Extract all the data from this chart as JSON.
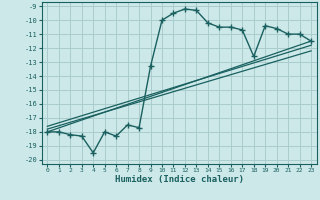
{
  "xlabel": "Humidex (Indice chaleur)",
  "ylabel": "",
  "bg_color": "#cce8e8",
  "grid_color": "#aacccc",
  "line_color": "#1a6060",
  "xlim": [
    -0.5,
    23.5
  ],
  "ylim": [
    -20.3,
    -8.7
  ],
  "yticks": [
    -9,
    -10,
    -11,
    -12,
    -13,
    -14,
    -15,
    -16,
    -17,
    -18,
    -19,
    -20
  ],
  "xticks": [
    0,
    1,
    2,
    3,
    4,
    5,
    6,
    7,
    8,
    9,
    10,
    11,
    12,
    13,
    14,
    15,
    16,
    17,
    18,
    19,
    20,
    21,
    22,
    23
  ],
  "main_x": [
    0,
    1,
    2,
    3,
    4,
    5,
    6,
    7,
    8,
    9,
    10,
    11,
    12,
    13,
    14,
    15,
    16,
    17,
    18,
    19,
    20,
    21,
    22,
    23
  ],
  "main_y": [
    -18,
    -18,
    -18.2,
    -18.3,
    -19.5,
    -18.0,
    -18.3,
    -17.5,
    -17.7,
    -13.3,
    -10.0,
    -9.5,
    -9.2,
    -9.3,
    -10.2,
    -10.5,
    -10.5,
    -10.7,
    -12.6,
    -10.4,
    -10.6,
    -11.0,
    -11.0,
    -11.5
  ],
  "line2_x": [
    0,
    23
  ],
  "line2_y": [
    -18.0,
    -11.5
  ],
  "line3_x": [
    0,
    23
  ],
  "line3_y": [
    -17.8,
    -12.2
  ],
  "line4_x": [
    0,
    23
  ],
  "line4_y": [
    -17.6,
    -11.8
  ]
}
